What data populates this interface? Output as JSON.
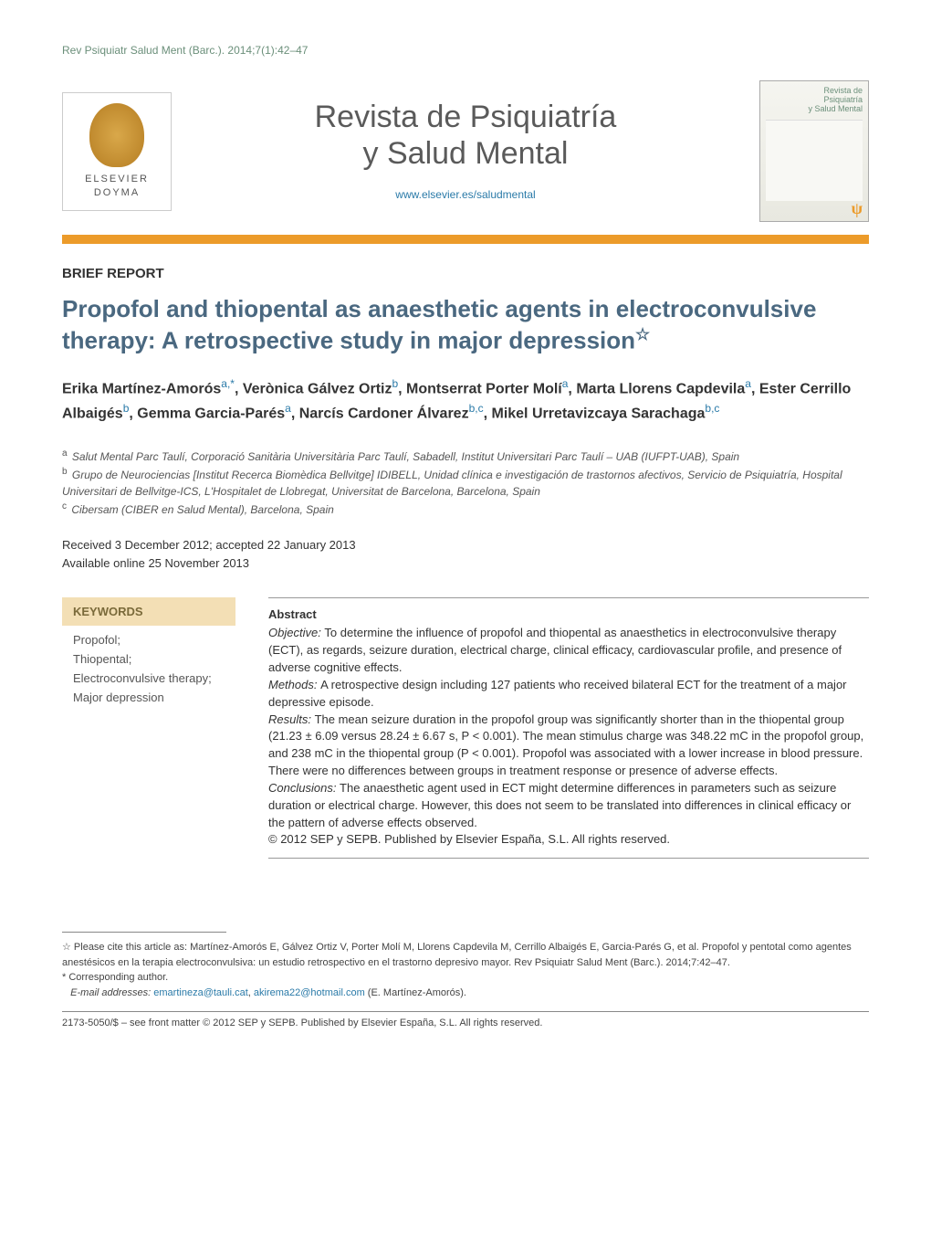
{
  "citation": "Rev Psiquiatr Salud Ment (Barc.). 2014;7(1):42–47",
  "publisher": {
    "logo_label": "ELSEVIER DOYMA",
    "logo_color": "#d9a84a"
  },
  "journal": {
    "title_line1": "Revista de Psiquiatría",
    "title_line2": "y Salud Mental",
    "url": "www.elsevier.es/saludmental",
    "cover_label_line1": "Revista de",
    "cover_label_line2": "Psiquiatría",
    "cover_label_line3": "y Salud Mental"
  },
  "colors": {
    "accent_bar": "#ec9b2a",
    "title_color": "#4a6880",
    "link_color": "#2a7aa8",
    "keywords_bg": "#f3dfb5",
    "keywords_header_color": "#7a6a3a",
    "citation_color": "#6b8f7a"
  },
  "article": {
    "type": "BRIEF REPORT",
    "title": "Propofol and thiopental as anaesthetic agents in electroconvulsive therapy: A retrospective study in major depression",
    "title_note_symbol": "☆",
    "authors_html": "Erika Martínez-Amorós<sup>a,*</sup>, Verònica Gálvez Ortiz<sup>b</sup>, Montserrat Porter Molí<sup>a</sup>, Marta Llorens Capdevila<sup>a</sup>, Ester Cerrillo Albaigés<sup>b</sup>, Gemma Garcia-Parés<sup>a</sup>, Narcís Cardoner Álvarez<sup>b,c</sup>, Mikel Urretavizcaya Sarachaga<sup>b,c</sup>",
    "affiliations": [
      {
        "marker": "a",
        "text": "Salut Mental Parc Taulí, Corporació Sanitària Universitària Parc Taulí, Sabadell, Institut Universitari Parc Taulí – UAB (IUFPT-UAB), Spain"
      },
      {
        "marker": "b",
        "text": "Grupo de Neurociencias [Institut Recerca Biomèdica Bellvitge] IDIBELL, Unidad clínica e investigación de trastornos afectivos, Servicio de Psiquiatría, Hospital Universitari de Bellvitge-ICS, L'Hospitalet de Llobregat, Universitat de Barcelona, Barcelona, Spain"
      },
      {
        "marker": "c",
        "text": "Cibersam (CIBER en Salud Mental), Barcelona, Spain"
      }
    ],
    "dates": {
      "received_accepted": "Received 3 December 2012; accepted 22 January 2013",
      "online": "Available online 25 November 2013"
    },
    "keywords_header": "KEYWORDS",
    "keywords": [
      "Propofol;",
      "Thiopental;",
      "Electroconvulsive therapy;",
      "Major depression"
    ],
    "abstract": {
      "label": "Abstract",
      "objective": "To determine the influence of propofol and thiopental as anaesthetics in electroconvulsive therapy (ECT), as regards, seizure duration, electrical charge, clinical efficacy, cardiovascular profile, and presence of adverse cognitive effects.",
      "methods": "A retrospective design including 127 patients who received bilateral ECT for the treatment of a major depressive episode.",
      "results": "The mean seizure duration in the propofol group was significantly shorter than in the thiopental group (21.23 ± 6.09 versus 28.24 ± 6.67 s, P < 0.001). The mean stimulus charge was 348.22 mC in the propofol group, and 238 mC in the thiopental group (P < 0.001). Propofol was associated with a lower increase in blood pressure. There were no differences between groups in treatment response or presence of adverse effects.",
      "conclusions": "The anaesthetic agent used in ECT might determine differences in parameters such as seizure duration or electrical charge. However, this does not seem to be translated into differences in clinical efficacy or the pattern of adverse effects observed.",
      "copyright": "© 2012 SEP y SEPB. Published by Elsevier España, S.L. All rights reserved."
    }
  },
  "footnotes": {
    "cite_as": "☆ Please cite this article as: Martínez-Amorós E, Gálvez Ortiz V, Porter Molí M, Llorens Capdevila M, Cerrillo Albaigés E, Garcia-Parés G, et al. Propofol y pentotal como agentes anestésicos en la terapia electroconvulsiva: un estudio retrospectivo en el trastorno depresivo mayor. Rev Psiquiatr Salud Ment (Barc.). 2014;7:42–47.",
    "corresponding": "* Corresponding author.",
    "email_label": "E-mail addresses:",
    "email1": "emartineza@tauli.cat",
    "email2": "akirema22@hotmail.com",
    "email_name": "(E. Martínez-Amorós)."
  },
  "page_copyright": "2173-5050/$ – see front matter © 2012 SEP y SEPB. Published by Elsevier España, S.L. All rights reserved."
}
